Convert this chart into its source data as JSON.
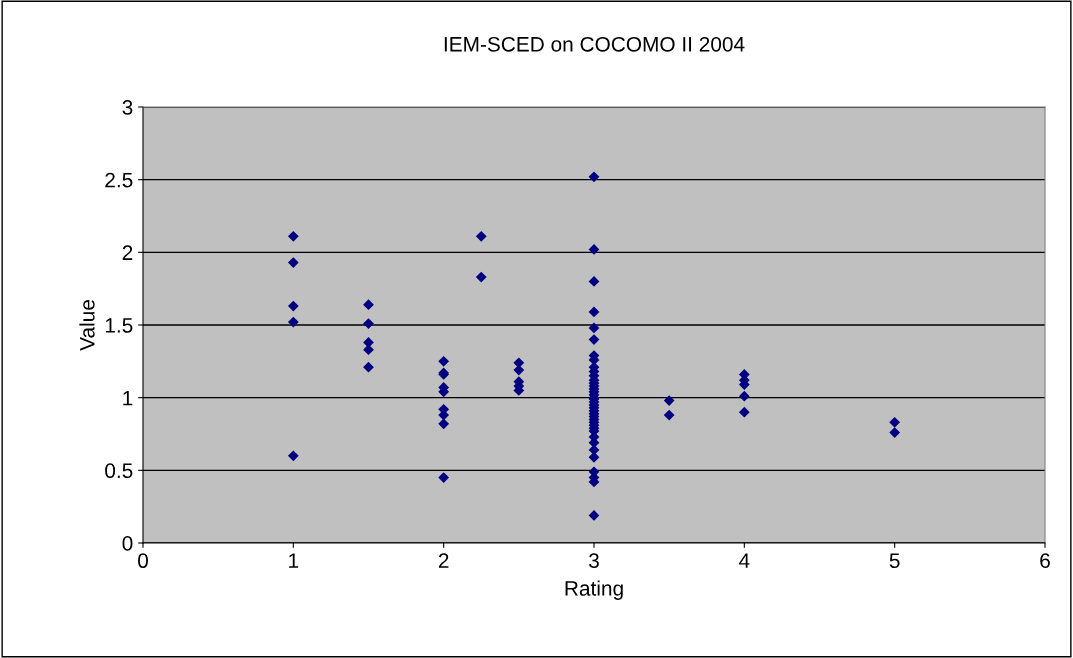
{
  "chart_data": {
    "type": "scatter",
    "title": "IEM-SCED on COCOMO II 2004",
    "xlabel": "Rating",
    "ylabel": "Value",
    "x": [
      1,
      1,
      1,
      1,
      1,
      1.5,
      1.5,
      1.5,
      1.5,
      1.5,
      2,
      2,
      2,
      2,
      2,
      2,
      2,
      2,
      2,
      2.25,
      2.25,
      2.5,
      2.5,
      2.5,
      2.5,
      2.5,
      3,
      3,
      3,
      3,
      3,
      3,
      3,
      3,
      3,
      3,
      3,
      3,
      3,
      3,
      3,
      3,
      3,
      3,
      3,
      3,
      3,
      3,
      3,
      3,
      3,
      3,
      3,
      3,
      3,
      3,
      3,
      3,
      3,
      3,
      3,
      3,
      3,
      3,
      3.5,
      3.5,
      4,
      4,
      4,
      4,
      4,
      5,
      5
    ],
    "values": [
      2.11,
      1.93,
      1.63,
      1.52,
      0.6,
      1.64,
      1.51,
      1.38,
      1.33,
      1.21,
      1.25,
      1.17,
      1.16,
      1.07,
      1.04,
      0.92,
      0.88,
      0.82,
      0.45,
      2.11,
      1.83,
      1.24,
      1.19,
      1.11,
      1.08,
      1.05,
      2.52,
      2.02,
      1.8,
      1.59,
      1.48,
      1.4,
      1.29,
      1.26,
      1.21,
      1.18,
      1.15,
      1.12,
      1.1,
      1.08,
      1.06,
      1.04,
      1.02,
      1.0,
      0.99,
      0.97,
      0.95,
      0.93,
      0.91,
      0.89,
      0.87,
      0.85,
      0.83,
      0.81,
      0.79,
      0.77,
      0.73,
      0.69,
      0.64,
      0.59,
      0.49,
      0.45,
      0.42,
      0.19,
      0.98,
      0.88,
      1.16,
      1.12,
      1.09,
      1.01,
      0.9,
      0.83,
      0.76
    ],
    "color": "#000080",
    "marker": "diamond",
    "xlim": [
      0,
      6
    ],
    "xticks": [
      0,
      1,
      2,
      3,
      4,
      5,
      6
    ],
    "ylim": [
      0,
      3
    ],
    "yticks": [
      0,
      {
        "value": 0.5,
        "label": "0.5"
      },
      1,
      {
        "value": 1.5,
        "label": "1.5"
      },
      2,
      {
        "value": 2.5,
        "label": "2.5"
      },
      3
    ],
    "grid": "y"
  }
}
